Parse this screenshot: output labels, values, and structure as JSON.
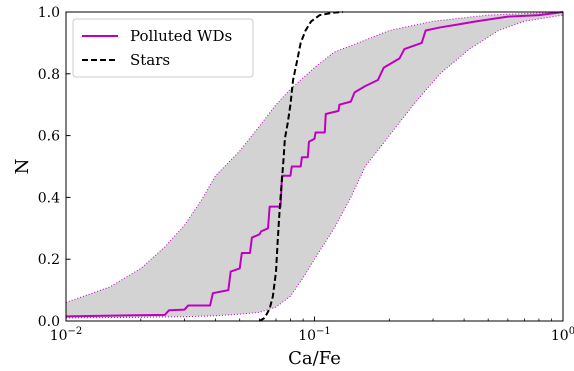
{
  "chart_data": {
    "type": "line",
    "title": "",
    "xlabel": "Ca/Fe",
    "ylabel": "N",
    "xscale": "log",
    "xlim": [
      0.01,
      1.0
    ],
    "ylim": [
      0.0,
      1.0
    ],
    "grid": false,
    "legend_position": "top-left",
    "x_ticks": [
      {
        "value": 0.01,
        "base": "10",
        "exp": "−2"
      },
      {
        "value": 0.1,
        "base": "10",
        "exp": "−1"
      },
      {
        "value": 1.0,
        "base": "10",
        "exp": "0"
      }
    ],
    "y_ticks": [
      {
        "value": 0.0,
        "label": "0.0"
      },
      {
        "value": 0.2,
        "label": "0.2"
      },
      {
        "value": 0.4,
        "label": "0.4"
      },
      {
        "value": 0.6,
        "label": "0.6"
      },
      {
        "value": 0.8,
        "label": "0.8"
      },
      {
        "value": 1.0,
        "label": "1.0"
      }
    ],
    "band": {
      "color": "#d3d3d3",
      "edge_color": "#c000c0",
      "lower": [
        [
          0.01,
          0.01
        ],
        [
          0.02,
          0.012
        ],
        [
          0.03,
          0.014
        ],
        [
          0.04,
          0.017
        ],
        [
          0.05,
          0.022
        ],
        [
          0.06,
          0.028
        ],
        [
          0.07,
          0.045
        ],
        [
          0.08,
          0.08
        ],
        [
          0.09,
          0.14
        ],
        [
          0.1,
          0.2
        ],
        [
          0.12,
          0.3
        ],
        [
          0.14,
          0.4
        ],
        [
          0.16,
          0.5
        ],
        [
          0.2,
          0.6
        ],
        [
          0.25,
          0.7
        ],
        [
          0.32,
          0.8
        ],
        [
          0.42,
          0.88
        ],
        [
          0.55,
          0.94
        ],
        [
          0.7,
          0.97
        ],
        [
          1.0,
          0.99
        ]
      ],
      "upper": [
        [
          0.01,
          0.06
        ],
        [
          0.015,
          0.11
        ],
        [
          0.02,
          0.17
        ],
        [
          0.025,
          0.24
        ],
        [
          0.03,
          0.31
        ],
        [
          0.035,
          0.39
        ],
        [
          0.04,
          0.47
        ],
        [
          0.05,
          0.55
        ],
        [
          0.06,
          0.63
        ],
        [
          0.07,
          0.7
        ],
        [
          0.08,
          0.75
        ],
        [
          0.1,
          0.82
        ],
        [
          0.12,
          0.87
        ],
        [
          0.15,
          0.9
        ],
        [
          0.2,
          0.94
        ],
        [
          0.3,
          0.97
        ],
        [
          0.5,
          0.99
        ],
        [
          1.0,
          1.0
        ]
      ]
    },
    "series": [
      {
        "name": "Polluted WDs",
        "color": "#c000c0",
        "style": "solid",
        "points": [
          [
            0.01,
            0.015
          ],
          [
            0.025,
            0.02
          ],
          [
            0.026,
            0.035
          ],
          [
            0.03,
            0.037
          ],
          [
            0.031,
            0.05
          ],
          [
            0.038,
            0.05
          ],
          [
            0.039,
            0.09
          ],
          [
            0.045,
            0.1
          ],
          [
            0.046,
            0.16
          ],
          [
            0.05,
            0.17
          ],
          [
            0.051,
            0.22
          ],
          [
            0.055,
            0.22
          ],
          [
            0.056,
            0.27
          ],
          [
            0.06,
            0.28
          ],
          [
            0.061,
            0.29
          ],
          [
            0.065,
            0.3
          ],
          [
            0.066,
            0.37
          ],
          [
            0.073,
            0.37
          ],
          [
            0.074,
            0.47
          ],
          [
            0.08,
            0.47
          ],
          [
            0.081,
            0.5
          ],
          [
            0.088,
            0.5
          ],
          [
            0.089,
            0.53
          ],
          [
            0.094,
            0.53
          ],
          [
            0.095,
            0.58
          ],
          [
            0.1,
            0.59
          ],
          [
            0.101,
            0.61
          ],
          [
            0.11,
            0.61
          ],
          [
            0.111,
            0.67
          ],
          [
            0.125,
            0.68
          ],
          [
            0.126,
            0.7
          ],
          [
            0.14,
            0.71
          ],
          [
            0.145,
            0.74
          ],
          [
            0.16,
            0.76
          ],
          [
            0.18,
            0.78
          ],
          [
            0.19,
            0.82
          ],
          [
            0.22,
            0.85
          ],
          [
            0.23,
            0.88
          ],
          [
            0.27,
            0.9
          ],
          [
            0.28,
            0.94
          ],
          [
            0.32,
            0.95
          ],
          [
            0.38,
            0.96
          ],
          [
            0.45,
            0.97
          ],
          [
            0.6,
            0.985
          ],
          [
            0.8,
            0.99
          ],
          [
            1.0,
            1.0
          ]
        ]
      },
      {
        "name": "Stars",
        "color": "#000000",
        "style": "dashed",
        "points": [
          [
            0.06,
            0.0
          ],
          [
            0.063,
            0.01
          ],
          [
            0.066,
            0.04
          ],
          [
            0.068,
            0.08
          ],
          [
            0.07,
            0.16
          ],
          [
            0.071,
            0.25
          ],
          [
            0.072,
            0.33
          ],
          [
            0.073,
            0.4
          ],
          [
            0.074,
            0.46
          ],
          [
            0.075,
            0.52
          ],
          [
            0.076,
            0.59
          ],
          [
            0.078,
            0.64
          ],
          [
            0.08,
            0.7
          ],
          [
            0.082,
            0.78
          ],
          [
            0.085,
            0.84
          ],
          [
            0.088,
            0.9
          ],
          [
            0.092,
            0.94
          ],
          [
            0.097,
            0.97
          ],
          [
            0.105,
            0.99
          ],
          [
            0.12,
            0.998
          ],
          [
            0.13,
            1.0
          ]
        ]
      }
    ]
  }
}
